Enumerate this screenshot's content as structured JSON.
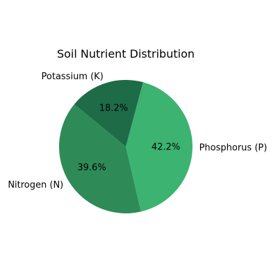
{
  "chart_data": {
    "type": "pie",
    "title": "Soil Nutrient Distribution",
    "categories": [
      "Phosphorus (P)",
      "Nitrogen (N)",
      "Potassium (K)"
    ],
    "values": [
      42.2,
      39.6,
      18.2
    ],
    "value_labels": [
      "42.2%",
      "39.6%",
      "18.2%"
    ],
    "colors": [
      "#3cb371",
      "#2e8b57",
      "#1e6b47"
    ],
    "start_angle_deg": 75,
    "direction": "clockwise",
    "legend": "none"
  }
}
